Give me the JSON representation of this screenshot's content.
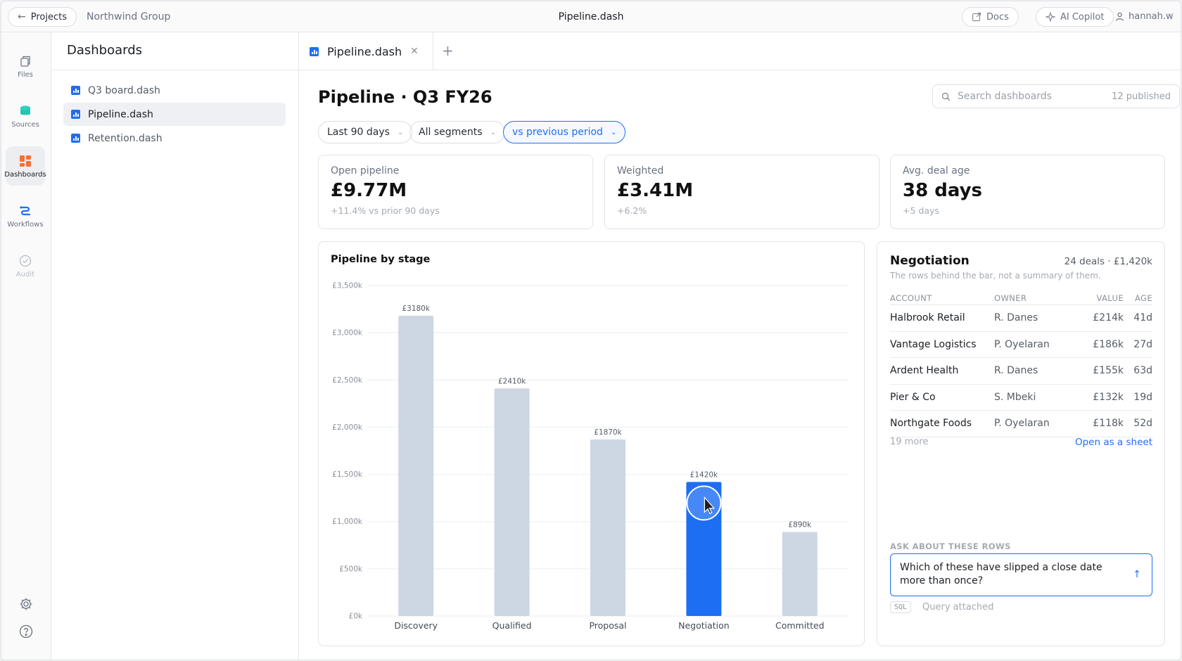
{
  "topbar": {
    "back_label": "Projects",
    "org": "Northwind Group",
    "file_title": "Pipeline.dash",
    "docs_label": "Docs",
    "ai_label": "AI Copilot",
    "user": "hannah.w"
  },
  "rail": {
    "items": [
      {
        "label": "Files",
        "icon": "files-icon"
      },
      {
        "label": "Sources",
        "icon": "database-icon"
      },
      {
        "label": "Dashboards",
        "icon": "dashboard-icon",
        "active": true
      },
      {
        "label": "Workflows",
        "icon": "workflow-icon"
      },
      {
        "label": "Audit",
        "icon": "check-circle-icon",
        "disabled": true
      }
    ],
    "bottom": [
      "gear-icon",
      "help-icon"
    ]
  },
  "filepanel": {
    "title": "Dashboards",
    "files": [
      {
        "name": "Q3 board.dash"
      },
      {
        "name": "Pipeline.dash",
        "active": true
      },
      {
        "name": "Retention.dash"
      }
    ]
  },
  "tabs": [
    {
      "label": "Pipeline.dash",
      "active": true
    }
  ],
  "main": {
    "title": "Pipeline · Q3 FY26",
    "search": {
      "placeholder": "Search dashboards",
      "count": "12 published"
    },
    "filters": [
      {
        "label": "Last 90 days"
      },
      {
        "label": "All segments"
      },
      {
        "label": "vs previous period",
        "accent": true
      }
    ],
    "kpis": [
      {
        "label": "Open pipeline",
        "value": "£9.77M",
        "delta": "+11.4% vs prior 90 days"
      },
      {
        "label": "Weighted",
        "value": "£3.41M",
        "delta": "+6.2%"
      },
      {
        "label": "Avg. deal age",
        "value": "38 days",
        "delta": "+5 days"
      }
    ]
  },
  "chart_data": {
    "type": "bar",
    "title": "Pipeline by stage",
    "categories": [
      "Discovery",
      "Qualified",
      "Proposal",
      "Negotiation",
      "Committed"
    ],
    "values": [
      3180,
      2410,
      1870,
      1420,
      890
    ],
    "value_labels": [
      "£3180k",
      "£2410k",
      "£1870k",
      "£1420k",
      "£890k"
    ],
    "ylim": [
      0,
      3500
    ],
    "yticks": [
      "£0k",
      "£500k",
      "£1,000k",
      "£1,500k",
      "£2,000k",
      "£2,500k",
      "£3,000k",
      "£3,500k"
    ],
    "highlighted": "Negotiation",
    "colors": {
      "bar": "#cdd6e3",
      "highlight": "#1e6ef4"
    },
    "grid": true
  },
  "detail": {
    "title": "Negotiation",
    "summary": "24 deals · £1,420k",
    "subtitle": "The rows behind the bar, not a summary of them.",
    "columns": [
      "ACCOUNT",
      "OWNER",
      "VALUE",
      "AGE"
    ],
    "rows": [
      {
        "account": "Halbrook Retail",
        "owner": "R. Danes",
        "value": "£214k",
        "age": "41d"
      },
      {
        "account": "Vantage Logistics",
        "owner": "P. Oyelaran",
        "value": "£186k",
        "age": "27d"
      },
      {
        "account": "Ardent Health",
        "owner": "R. Danes",
        "value": "£155k",
        "age": "63d"
      },
      {
        "account": "Pier & Co",
        "owner": "S. Mbeki",
        "value": "£132k",
        "age": "19d"
      },
      {
        "account": "Northgate Foods",
        "owner": "P. Oyelaran",
        "value": "£118k",
        "age": "52d"
      }
    ],
    "more": "19 more",
    "open_link": "Open as a sheet",
    "ask_label": "ASK ABOUT THESE ROWS",
    "ask_text": "Which of these have slipped a close date more than once?",
    "sql_tag": "SQL",
    "sql_note": "Query attached"
  }
}
